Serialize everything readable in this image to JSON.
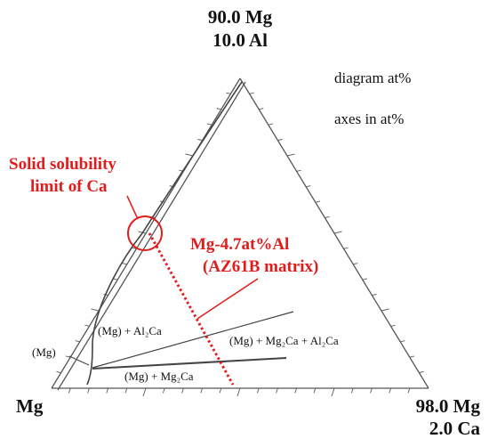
{
  "corners": {
    "top": [
      "90.0 Mg",
      "10.0 Al"
    ],
    "left": [
      "Mg"
    ],
    "right": [
      "98.0 Mg",
      "2.0 Ca"
    ]
  },
  "notes": [
    "diagram at%",
    "axes in at%"
  ],
  "callouts": {
    "solubility": [
      "Solid solubility",
      "limit of Ca"
    ],
    "matrix": [
      "Mg-4.7at%Al",
      "(AZ61B matrix)"
    ]
  },
  "phases": [
    "(Mg) + Al₂Ca",
    "(Mg) + Mg₂Ca + Al₂Ca",
    "(Mg)",
    "(Mg) + Mg₂Ca"
  ]
}
